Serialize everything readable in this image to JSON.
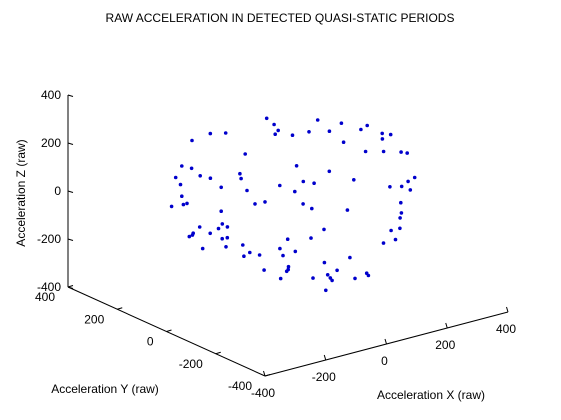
{
  "chart_data": {
    "type": "scatter",
    "title": "RAW ACCELERATION IN DETECTED QUASI-STATIC PERIODS",
    "xlabel": "Acceleration X (raw)",
    "ylabel": "Acceleration Y (raw)",
    "zlabel": "Acceleration Z (raw)",
    "xlim": [
      -400,
      400
    ],
    "ylim": [
      -400,
      400
    ],
    "zlim": [
      -400,
      400
    ],
    "xticks": [
      -400,
      -200,
      0,
      200,
      400
    ],
    "yticks": [
      -400,
      -200,
      0,
      200,
      400
    ],
    "zticks": [
      -400,
      -200,
      0,
      200,
      400
    ],
    "xtick_labels": [
      "-400",
      "-200",
      "0",
      "200",
      "400"
    ],
    "ytick_labels": [
      "-400",
      "-200",
      "0",
      "200",
      "400"
    ],
    "ztick_labels": [
      "-400",
      "-200",
      "0",
      "200",
      "400"
    ],
    "grid": false,
    "marker": "dot",
    "marker_color": "#0000cc",
    "points": [
      [
        -6,
        264,
        -53
      ],
      [
        -76,
        263,
        19
      ],
      [
        69,
        259,
        63
      ],
      [
        4,
        258,
        173
      ],
      [
        162,
        252,
        118
      ],
      [
        127,
        243,
        200
      ],
      [
        155,
        231,
        146
      ],
      [
        135,
        223,
        181
      ],
      [
        162,
        233,
        -87
      ],
      [
        177,
        200,
        133
      ],
      [
        196,
        214,
        -115
      ],
      [
        176,
        182,
        14
      ],
      [
        220,
        186,
        139
      ],
      [
        214,
        158,
        -60
      ],
      [
        170,
        89,
        250
      ],
      [
        252,
        143,
        -16
      ],
      [
        228,
        113,
        173
      ],
      [
        273,
        111,
        113
      ],
      [
        230,
        67,
        227
      ],
      [
        270,
        37,
        201
      ],
      [
        257,
        2,
        130
      ],
      [
        239,
        -27,
        258
      ],
      [
        306,
        -6,
        170
      ],
      [
        288,
        -33,
        136
      ],
      [
        279,
        -73,
        228
      ],
      [
        237,
        -90,
        255
      ],
      [
        303,
        -88,
        11
      ],
      [
        262,
        -136,
        190
      ],
      [
        272,
        -125,
        -72
      ],
      [
        294,
        -125,
        52
      ],
      [
        261,
        -162,
        198
      ],
      [
        205,
        -166,
        -104
      ],
      [
        223,
        -183,
        14
      ],
      [
        264,
        -171,
        48
      ],
      [
        198,
        -210,
        -72
      ],
      [
        233,
        -227,
        136
      ],
      [
        149,
        -204,
        -120
      ],
      [
        160,
        -239,
        -93
      ],
      [
        132,
        -251,
        142
      ],
      [
        159,
        -259,
        7
      ],
      [
        70,
        -240,
        -212
      ],
      [
        66,
        -238,
        -202
      ],
      [
        -11,
        -265,
        -99
      ],
      [
        21,
        -246,
        -205
      ],
      [
        -56,
        -248,
        -187
      ],
      [
        -45,
        -255,
        -145
      ],
      [
        -74,
        -239,
        -111
      ],
      [
        -84,
        -250,
        36
      ],
      [
        -163,
        -203,
        -115
      ],
      [
        -109,
        -228,
        -2
      ],
      [
        -123,
        -213,
        138
      ],
      [
        -179,
        -188,
        -41
      ],
      [
        -211,
        -145,
        -77
      ],
      [
        -203,
        -157,
        147
      ],
      [
        -223,
        -141,
        138
      ],
      [
        -224,
        -110,
        180
      ],
      [
        -229,
        -87,
        241
      ],
      [
        -278,
        -97,
        40
      ],
      [
        -265,
        -60,
        31
      ],
      [
        -267,
        -58,
        84
      ],
      [
        -266,
        -13,
        200
      ],
      [
        -310,
        -36,
        -68
      ],
      [
        -304,
        10,
        -27
      ],
      [
        -299,
        32,
        -53
      ],
      [
        -269,
        93,
        42
      ],
      [
        -274,
        118,
        145
      ],
      [
        -188,
        158,
        252
      ],
      [
        -272,
        137,
        15
      ],
      [
        -233,
        144,
        167
      ],
      [
        -206,
        177,
        17
      ],
      [
        -174,
        222,
        34
      ],
      [
        -151,
        224,
        -53
      ],
      [
        -84,
        212,
        221
      ],
      [
        -117,
        247,
        71
      ],
      [
        -114,
        218,
        -161
      ],
      [
        -86,
        210,
        -193
      ],
      [
        -61,
        207,
        -180
      ],
      [
        -60,
        193,
        -216
      ],
      [
        -63,
        174,
        -240
      ],
      [
        -20,
        159,
        -240
      ],
      [
        -9,
        144,
        -268
      ],
      [
        -44,
        125,
        -263
      ],
      [
        55,
        88,
        -276
      ],
      [
        -35,
        54,
        -291
      ],
      [
        3,
        3,
        -278
      ],
      [
        -33,
        -11,
        -297
      ],
      [
        -32,
        -34,
        -256
      ],
      [
        23,
        -133,
        -243
      ],
      [
        -36,
        -146,
        -231
      ],
      [
        -24,
        -183,
        -269
      ],
      [
        -39,
        -220,
        -195
      ],
      [
        24,
        -67,
        2
      ],
      [
        -82,
        -100,
        -75
      ],
      [
        -44,
        -84,
        -146
      ],
      [
        6,
        198,
        10
      ],
      [
        -96,
        128,
        -170
      ],
      [
        120,
        86,
        12
      ],
      [
        177,
        -23,
        -76
      ],
      [
        -185,
        160,
        -144
      ],
      [
        56,
        -198,
        172
      ]
    ]
  }
}
